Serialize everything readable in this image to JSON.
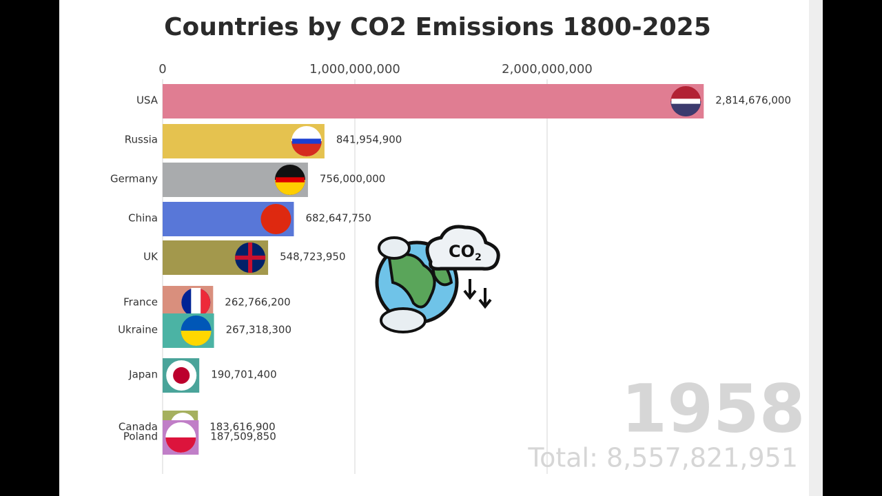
{
  "chart_data": {
    "type": "bar",
    "orientation": "horizontal",
    "title": "Countries by CO2 Emissions 1800-2025",
    "categories": [
      "USA",
      "Russia",
      "Germany",
      "China",
      "UK",
      "France",
      "Ukraine",
      "Japan",
      "Canada",
      "Poland"
    ],
    "values": [
      2814676000,
      841954900,
      756000000,
      682647750,
      548723950,
      262766200,
      267318300,
      190701400,
      183616900,
      187509850
    ],
    "value_labels": [
      "2,814,676,000",
      "841,954,900",
      "756,000,000",
      "682,647,750",
      "548,723,950",
      "262,766,200",
      "267,318,300",
      "190,701,400",
      "183,616,900",
      "187,509,850"
    ],
    "colors": [
      "#e07d92",
      "#e5c24f",
      "#a9abad",
      "#5877d8",
      "#a3984c",
      "#d98f7d",
      "#4bb3a4",
      "#4aa49a",
      "#a5b05e",
      "#c07ec7"
    ],
    "xlim": [
      0,
      3000000000
    ],
    "xticks": [
      0,
      {
        "value": 1000000000,
        "label": "1,000,000,000"
      },
      {
        "value": 2000000000,
        "label": "2,000,000,000"
      }
    ],
    "grid": true,
    "year": "1958",
    "total": "Total: 8,557,821,951"
  }
}
